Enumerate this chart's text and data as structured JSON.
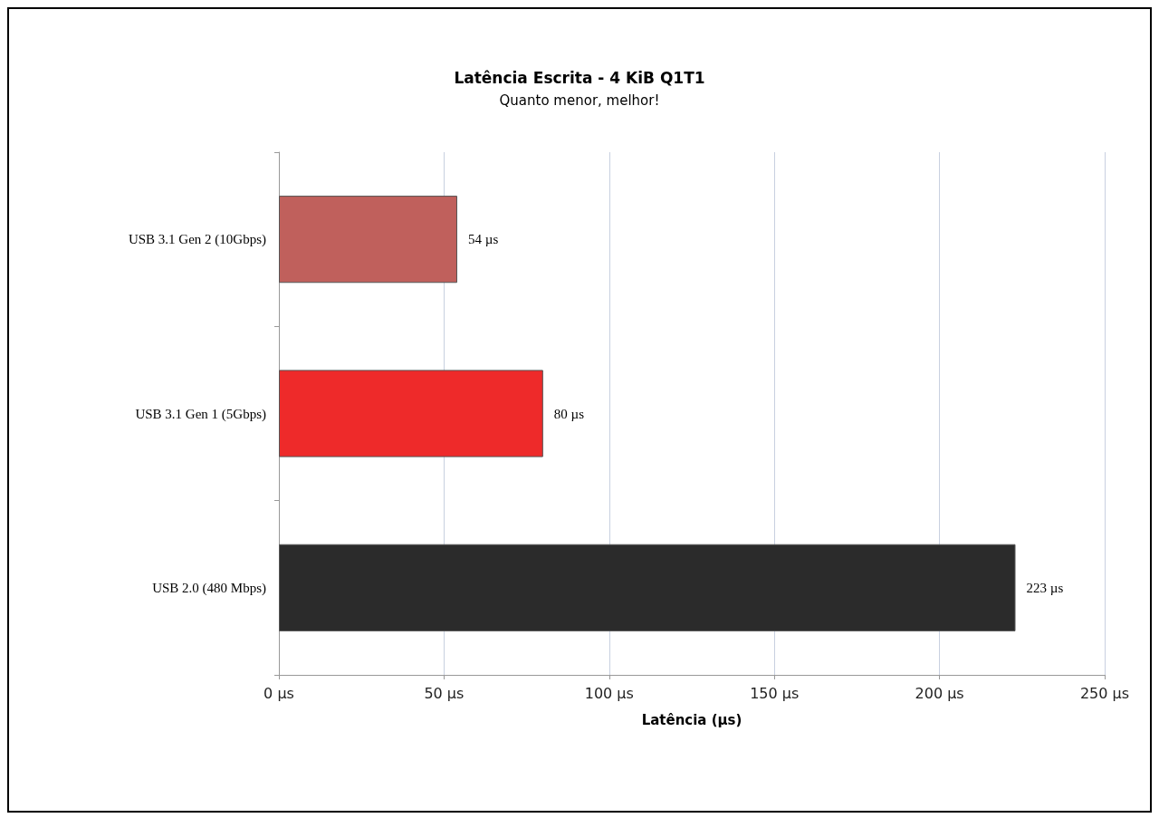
{
  "chart_data": {
    "type": "bar",
    "orientation": "horizontal",
    "title": "Latência Escrita - 4 KiB Q1T1",
    "subtitle": "Quanto menor, melhor!",
    "xlabel": "Latência (µs)",
    "categories": [
      "USB 3.1 Gen 2 (10Gbps)",
      "USB 3.1 Gen 1 (5Gbps)",
      "USB 2.0 (480 Mbps)"
    ],
    "values": [
      54,
      80,
      223
    ],
    "colors": [
      "#c0605c",
      "#ee2a2a",
      "#2b2b2b"
    ],
    "value_labels": [
      "54 µs",
      "80 µs",
      "223 µs"
    ],
    "xlim": [
      0,
      250
    ],
    "xticks": [
      {
        "value": 0,
        "label": "0 µs"
      },
      {
        "value": 50,
        "label": "50 µs"
      },
      {
        "value": 100,
        "label": "100 µs"
      },
      {
        "value": 150,
        "label": "150 µs"
      },
      {
        "value": 200,
        "label": "200 µs"
      },
      {
        "value": 250,
        "label": "250 µs"
      }
    ],
    "grid": "x"
  }
}
